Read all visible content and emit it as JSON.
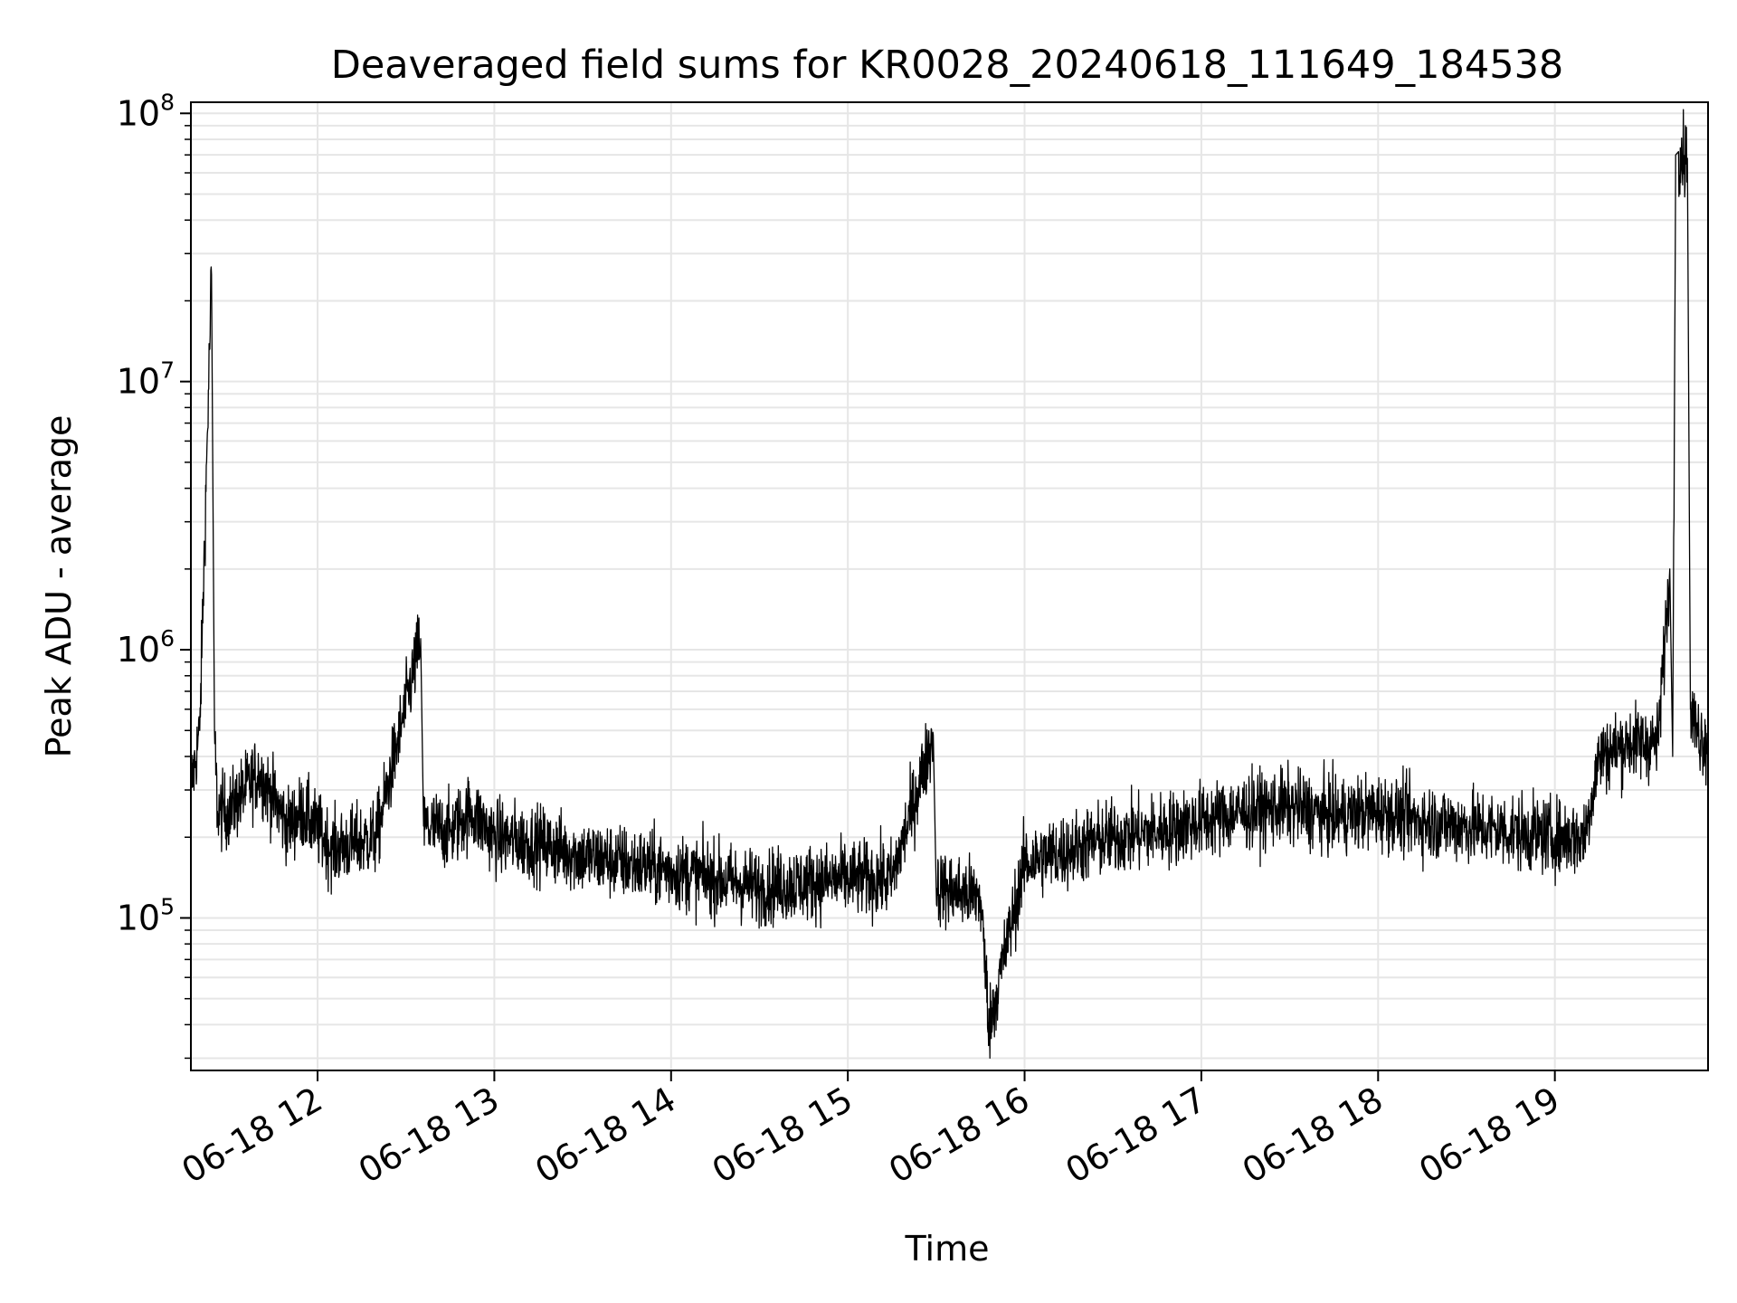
{
  "chart_data": {
    "type": "line",
    "title": "Deaveraged field sums for KR0028_20240618_111649_184538",
    "xlabel": "Time",
    "ylabel": "Peak ADU - average",
    "y_scale": "log",
    "ylim": [
      27000,
      110000000
    ],
    "xlim": [
      "2024-06-18 11:17",
      "2024-06-18 19:52"
    ],
    "grid": true,
    "line_color": "#000000",
    "x_ticks": [
      "06-18 12",
      "06-18 13",
      "06-18 14",
      "06-18 15",
      "06-18 16",
      "06-18 17",
      "06-18 18",
      "06-18 19"
    ],
    "y_ticks": [
      {
        "base": "10",
        "exp": "5"
      },
      {
        "base": "10",
        "exp": "6"
      },
      {
        "base": "10",
        "exp": "7"
      },
      {
        "base": "10",
        "exp": "8"
      }
    ],
    "series": [
      {
        "x": [
          "2024-06-18 11:17",
          "2024-06-18 11:20",
          "2024-06-18 11:24",
          "2024-06-18 11:25",
          "2024-06-18 11:26",
          "2024-06-18 11:30",
          "2024-06-18 11:40",
          "2024-06-18 11:50",
          "2024-06-18 11:55",
          "2024-06-18 12:05",
          "2024-06-18 12:20",
          "2024-06-18 12:35",
          "2024-06-18 12:36",
          "2024-06-18 12:45",
          "2024-06-18 12:52",
          "2024-06-18 13:00",
          "2024-06-18 13:15",
          "2024-06-18 13:30",
          "2024-06-18 13:45",
          "2024-06-18 14:00",
          "2024-06-18 14:15",
          "2024-06-18 14:30",
          "2024-06-18 14:45",
          "2024-06-18 15:00",
          "2024-06-18 15:15",
          "2024-06-18 15:29",
          "2024-06-18 15:30",
          "2024-06-18 15:45",
          "2024-06-18 15:48",
          "2024-06-18 16:00",
          "2024-06-18 16:15",
          "2024-06-18 16:30",
          "2024-06-18 16:45",
          "2024-06-18 17:00",
          "2024-06-18 17:15",
          "2024-06-18 17:30",
          "2024-06-18 17:45",
          "2024-06-18 18:00",
          "2024-06-18 18:15",
          "2024-06-18 18:30",
          "2024-06-18 18:45",
          "2024-06-18 19:00",
          "2024-06-18 19:10",
          "2024-06-18 19:15",
          "2024-06-18 19:25",
          "2024-06-18 19:35",
          "2024-06-18 19:39",
          "2024-06-18 19:40",
          "2024-06-18 19:41",
          "2024-06-18 19:42",
          "2024-06-18 19:45",
          "2024-06-18 19:46",
          "2024-06-18 19:48",
          "2024-06-18 19:52"
        ],
        "values": [
          300000,
          500000,
          25000000,
          500000,
          250000,
          250000,
          350000,
          220000,
          250000,
          180000,
          200000,
          1100000,
          220000,
          210000,
          250000,
          200000,
          190000,
          170000,
          160000,
          150000,
          140000,
          130000,
          135000,
          140000,
          140000,
          480000,
          130000,
          120000,
          40000,
          160000,
          180000,
          200000,
          210000,
          230000,
          250000,
          260000,
          240000,
          250000,
          230000,
          220000,
          210000,
          200000,
          200000,
          400000,
          450000,
          450000,
          2000000,
          400000,
          70000000,
          72000000,
          68000000,
          600000,
          500000,
          450000
        ]
      }
    ]
  }
}
